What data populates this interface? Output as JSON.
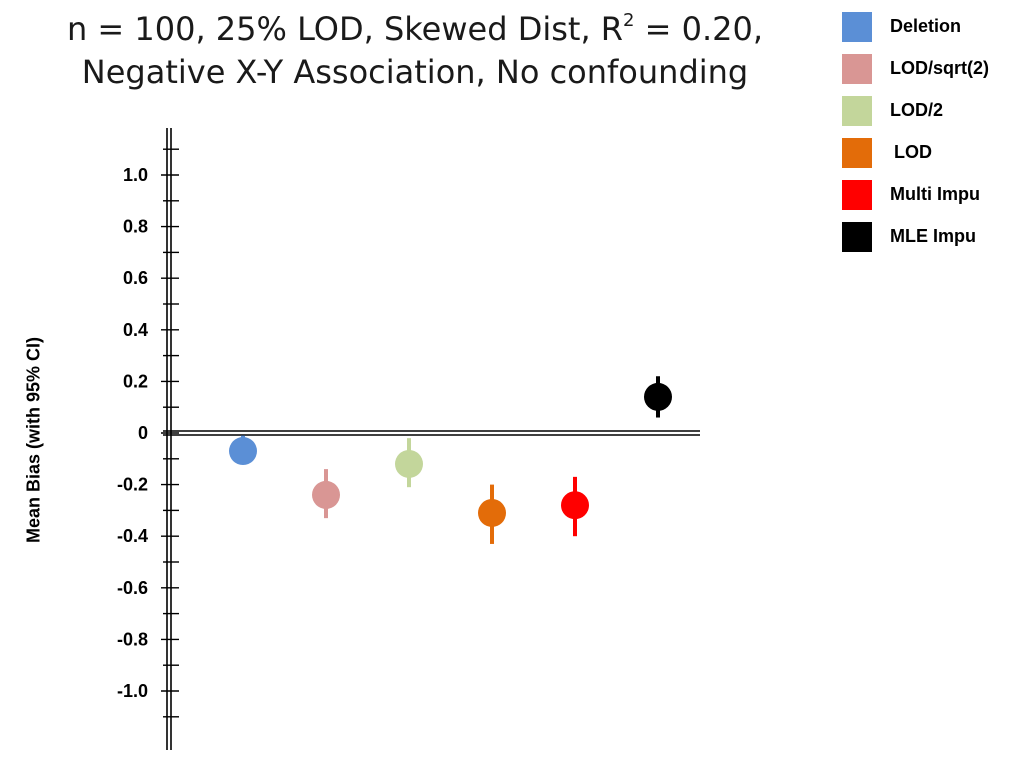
{
  "title": {
    "line1_pre": "n = 100, 25% LOD, Skewed Dist, R",
    "line1_sup": "2",
    "line1_post": " = 0.20,",
    "line2": "Negative X-Y Association, No confounding"
  },
  "chart_data": {
    "type": "scatter",
    "subtype": "point-with-error-bar",
    "xlabel": "",
    "ylabel": "Mean Bias (with 95% CI)",
    "ylim": [
      -1.2,
      1.2
    ],
    "y_ticks": [
      {
        "value": 1.0,
        "label": "1.0"
      },
      {
        "value": 0.8,
        "label": "0.8"
      },
      {
        "value": 0.6,
        "label": "0.6"
      },
      {
        "value": 0.4,
        "label": "0.4"
      },
      {
        "value": 0.2,
        "label": "0.2"
      },
      {
        "value": 0,
        "label": "0"
      },
      {
        "value": -0.2,
        "label": "-0.2"
      },
      {
        "value": -0.4,
        "label": "-0.4"
      },
      {
        "value": -0.6,
        "label": "-0.6"
      },
      {
        "value": -0.8,
        "label": "-0.8"
      },
      {
        "value": -1.0,
        "label": "-1.0"
      }
    ],
    "minor_ticks": [
      1.1,
      0.9,
      0.7,
      0.5,
      0.3,
      0.1,
      -0.1,
      -0.3,
      -0.5,
      -0.7,
      -0.9,
      -1.1
    ],
    "reference_line": 0,
    "grid": false,
    "legend_position": "top-right",
    "series": [
      {
        "name": "Deletion",
        "color": "#5b8fd6",
        "mean": -0.07,
        "ci_low": -0.1,
        "ci_high": -0.01
      },
      {
        "name": "LOD/sqrt(2)",
        "color": "#d99694",
        "mean": -0.24,
        "ci_low": -0.33,
        "ci_high": -0.14
      },
      {
        "name": "LOD/2",
        "color": "#c3d69b",
        "mean": -0.12,
        "ci_low": -0.21,
        "ci_high": -0.02
      },
      {
        "name": "LOD",
        "color": "#e36c09",
        "mean": -0.31,
        "ci_low": -0.43,
        "ci_high": -0.2
      },
      {
        "name": "Multi Impu",
        "color": "#ff0000",
        "mean": -0.28,
        "ci_low": -0.4,
        "ci_high": -0.17
      },
      {
        "name": "MLE Impu",
        "color": "#000000",
        "mean": 0.14,
        "ci_low": 0.06,
        "ci_high": 0.22
      }
    ]
  }
}
